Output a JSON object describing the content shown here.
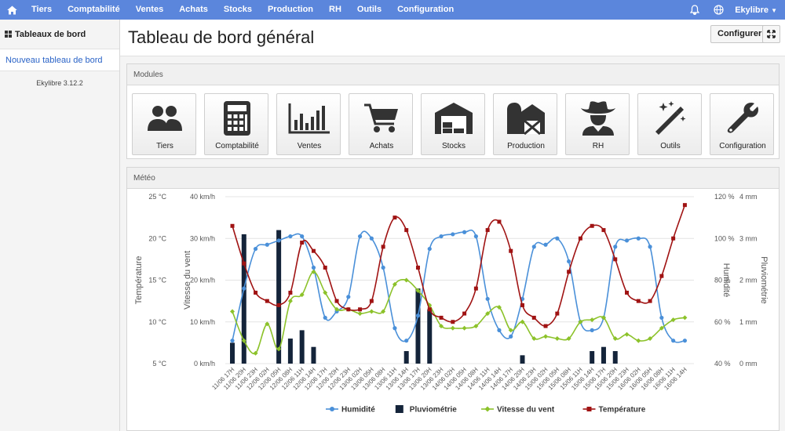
{
  "navbar": {
    "items": [
      "Tiers",
      "Comptabilité",
      "Ventes",
      "Achats",
      "Stocks",
      "Production",
      "RH",
      "Outils",
      "Configuration"
    ],
    "user": "Ekylibre",
    "icons": [
      "home-icon",
      "bell-icon",
      "globe-icon",
      "caret-down-icon"
    ]
  },
  "sidebar": {
    "header": "Tableaux de bord",
    "link": "Nouveau tableau de bord",
    "version": "Ekylibre 3.12.2"
  },
  "page": {
    "title": "Tableau de bord général",
    "configure_label": "Configurer"
  },
  "modules": {
    "title": "Modules",
    "items": [
      {
        "label": "Tiers",
        "icon": "users-icon"
      },
      {
        "label": "Comptabilité",
        "icon": "calculator-icon"
      },
      {
        "label": "Ventes",
        "icon": "bar-chart-icon"
      },
      {
        "label": "Achats",
        "icon": "cart-icon"
      },
      {
        "label": "Stocks",
        "icon": "warehouse-icon"
      },
      {
        "label": "Production",
        "icon": "barn-icon"
      },
      {
        "label": "RH",
        "icon": "cowboy-icon"
      },
      {
        "label": "Outils",
        "icon": "magic-wand-icon"
      },
      {
        "label": "Configuration",
        "icon": "wrench-icon"
      }
    ]
  },
  "meteo": {
    "title": "Météo",
    "colors": {
      "humidity": "#4a90d9",
      "rain": "#14243a",
      "wind": "#8cc22a",
      "temperature": "#a01313"
    }
  },
  "chart_data": {
    "type": "line",
    "x": [
      "11/06 17H",
      "11/06 20H",
      "11/06 23H",
      "12/06 02H",
      "12/06 05H",
      "12/06 08H",
      "12/06 11H",
      "12/06 14H",
      "12/06 17H",
      "12/06 20H",
      "12/06 23H",
      "13/06 02H",
      "13/06 05H",
      "13/06 08H",
      "13/06 11H",
      "13/06 14H",
      "13/06 17H",
      "13/06 20H",
      "13/06 23H",
      "14/06 02H",
      "14/06 05H",
      "14/06 08H",
      "14/06 11H",
      "14/06 14H",
      "14/06 17H",
      "14/06 20H",
      "14/06 23H",
      "15/06 02H",
      "15/06 05H",
      "15/06 08H",
      "15/06 11H",
      "15/06 14H",
      "15/06 17H",
      "15/06 20H",
      "15/06 23H",
      "16/06 02H",
      "16/06 05H",
      "16/06 08H",
      "16/06 11H",
      "16/06 14H"
    ],
    "axes": [
      {
        "label": "Température",
        "ticks": [
          "5 °C",
          "10 °C",
          "15 °C",
          "20 °C",
          "25 °C"
        ],
        "range": [
          5,
          25
        ]
      },
      {
        "label": "Vitesse du vent",
        "ticks": [
          "0 km/h",
          "10 km/h",
          "20 km/h",
          "30 km/h",
          "40 km/h"
        ],
        "range": [
          0,
          40
        ]
      },
      {
        "label": "Humidité",
        "ticks": [
          "40 %",
          "60 %",
          "80 %",
          "100 %",
          "120 %"
        ],
        "range": [
          40,
          120
        ]
      },
      {
        "label": "Pluviométrie",
        "ticks": [
          "0 mm",
          "1 mm",
          "2 mm",
          "3 mm",
          "4 mm"
        ],
        "range": [
          0,
          4
        ]
      }
    ],
    "series": [
      {
        "name": "Humidité",
        "type": "line",
        "axis": 2,
        "values": [
          51,
          76,
          95,
          97,
          99,
          101,
          101,
          86,
          62,
          65,
          72,
          101,
          100,
          86,
          57,
          51,
          63,
          95,
          101,
          102,
          103,
          101,
          71,
          56,
          53,
          71,
          96,
          97,
          100,
          89,
          60,
          56,
          62,
          96,
          99,
          100,
          96,
          62,
          51,
          51
        ]
      },
      {
        "name": "Pluviométrie",
        "type": "bar",
        "axis": 3,
        "values": [
          0.5,
          3.1,
          0,
          0,
          3.2,
          0.6,
          0.8,
          0.4,
          0,
          0,
          0,
          0,
          0,
          0,
          0,
          0.3,
          1.8,
          1.3,
          0,
          0,
          0,
          0,
          0,
          0,
          0,
          0.2,
          0,
          0,
          0,
          0,
          0,
          0.3,
          0.4,
          0.3,
          0,
          0,
          0,
          0,
          0,
          0
        ]
      },
      {
        "name": "Vitesse du vent",
        "type": "line",
        "axis": 1,
        "values": [
          12.5,
          5.5,
          2.5,
          9.5,
          3.5,
          15,
          16.5,
          22,
          17,
          13,
          13,
          12,
          12.5,
          12.5,
          19,
          20,
          17.5,
          14,
          9,
          8.5,
          8.5,
          9,
          12,
          13.5,
          8,
          10,
          6,
          6.5,
          6,
          6,
          10,
          10.5,
          11,
          6,
          7,
          5.5,
          6,
          8.5,
          10.5,
          11
        ]
      },
      {
        "name": "Température",
        "type": "line",
        "axis": 0,
        "values": [
          21.5,
          17,
          13.5,
          12.5,
          12,
          13.5,
          19.5,
          18.5,
          16.5,
          12.5,
          11.5,
          11.5,
          12.5,
          19,
          22.5,
          21,
          16.5,
          11.5,
          10.5,
          10,
          11,
          14,
          21,
          22,
          18.5,
          12,
          10.5,
          9.5,
          11,
          16,
          20,
          21.5,
          21,
          17.5,
          13.5,
          12.5,
          12.5,
          15.5,
          20,
          24
        ]
      }
    ],
    "legend": [
      "Humidité",
      "Pluviométrie",
      "Vitesse du vent",
      "Température"
    ],
    "legend_position": "bottom",
    "grid": true
  }
}
